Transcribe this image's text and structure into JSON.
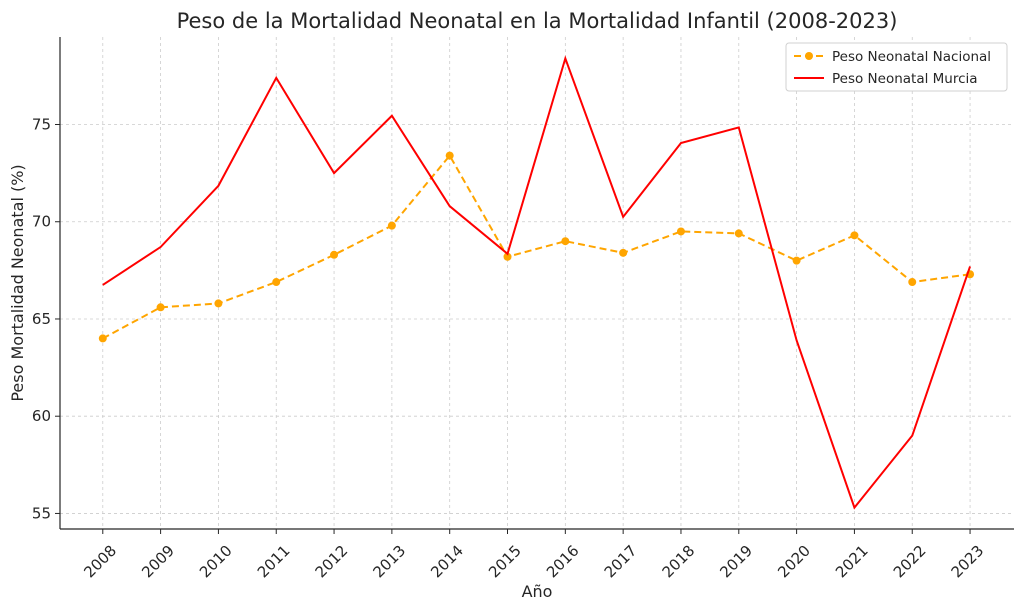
{
  "chart_data": {
    "type": "line",
    "title": "Peso de la Mortalidad Neonatal en la Mortalidad Infantil (2008-2023)",
    "xlabel": "Año",
    "ylabel": "Peso Mortalidad Neonatal (%)",
    "x": [
      2008,
      2009,
      2010,
      2011,
      2012,
      2013,
      2014,
      2015,
      2016,
      2017,
      2018,
      2019,
      2020,
      2021,
      2022,
      2023
    ],
    "x_tick_labels": [
      "2008",
      "2009",
      "2010",
      "2011",
      "2012",
      "2013",
      "2014",
      "2015",
      "2016",
      "2017",
      "2018",
      "2019",
      "2020",
      "2021",
      "2022",
      "2023"
    ],
    "y_ticks": [
      55,
      60,
      65,
      70,
      75
    ],
    "y_tick_labels": [
      "55",
      "60",
      "65",
      "70",
      "75"
    ],
    "ylim": [
      54.2,
      79.5
    ],
    "xlim": [
      2007.26,
      2023.76
    ],
    "grid": true,
    "legend_position": "top-right",
    "series": [
      {
        "name": "Peso Neonatal Nacional",
        "color": "#FFA500",
        "style": "dashed",
        "marker": "circle",
        "values": [
          64.0,
          65.6,
          65.8,
          66.9,
          68.3,
          69.8,
          73.4,
          68.2,
          69.0,
          68.4,
          69.5,
          69.4,
          68.0,
          69.3,
          66.9,
          67.3
        ]
      },
      {
        "name": "Peso Neonatal Murcia",
        "color": "#FF0000",
        "style": "solid",
        "marker": "none",
        "values": [
          66.75,
          68.7,
          71.85,
          77.4,
          72.5,
          75.45,
          70.8,
          68.35,
          78.4,
          70.25,
          74.05,
          74.85,
          63.9,
          55.3,
          59.0,
          67.7
        ]
      }
    ]
  }
}
